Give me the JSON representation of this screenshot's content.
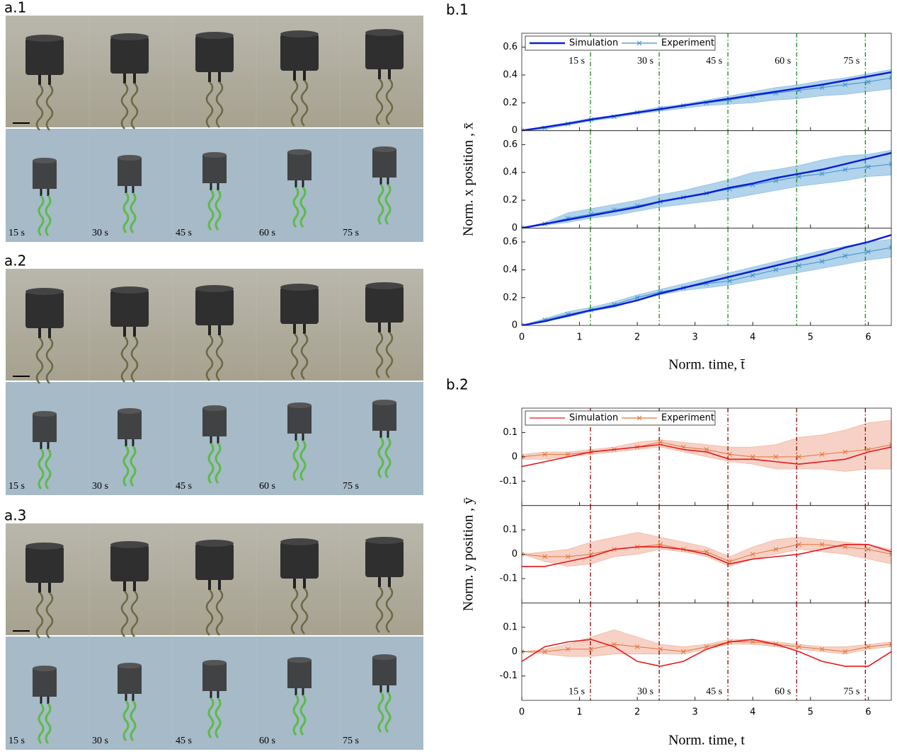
{
  "panels": [
    {
      "label": "a.1",
      "times": [
        "15 s",
        "30 s",
        "45 s",
        "60 s",
        "75 s"
      ]
    },
    {
      "label": "a.2",
      "times": [
        "15 s",
        "30 s",
        "45 s",
        "60 s",
        "75 s"
      ]
    },
    {
      "label": "a.3",
      "times": [
        "15 s",
        "30 s",
        "45 s",
        "60 s",
        "75 s"
      ]
    }
  ],
  "chart_data": [
    {
      "type": "line",
      "label": "b.1",
      "xlabel": "Norm. time, t̄",
      "ylabel": "Norm. x position , x̄",
      "x": [
        0,
        0.4,
        0.8,
        1.2,
        1.6,
        2,
        2.4,
        2.8,
        3.2,
        3.6,
        4,
        4.4,
        4.8,
        5.2,
        5.6,
        6,
        6.4
      ],
      "xlim": [
        0,
        6.4
      ],
      "xticks": [
        0,
        1,
        2,
        3,
        4,
        5,
        6
      ],
      "ylim": [
        0,
        0.7
      ],
      "yticks": [
        0,
        0.2,
        0.4,
        0.6
      ],
      "legend": "upper left",
      "band_color": "#9ec8e6",
      "series": [
        {
          "name": "Simulation",
          "color": "#0a1fd6"
        },
        {
          "name": "Experiment",
          "color": "#3a8fd0"
        }
      ],
      "events": {
        "x": [
          1.19,
          2.38,
          3.57,
          4.76,
          5.95
        ],
        "labels": [
          "15 s",
          "30 s",
          "45 s",
          "60 s",
          "75 s"
        ],
        "color": "#1a8a1a",
        "label_subplot": 0
      },
      "subplots": [
        {
          "simulation": [
            0,
            0.025,
            0.05,
            0.08,
            0.105,
            0.13,
            0.155,
            0.18,
            0.205,
            0.23,
            0.255,
            0.28,
            0.305,
            0.33,
            0.36,
            0.39,
            0.42
          ],
          "experiment": [
            0,
            0.02,
            0.05,
            0.08,
            0.1,
            0.13,
            0.16,
            0.18,
            0.2,
            0.22,
            0.25,
            0.27,
            0.29,
            0.31,
            0.33,
            0.35,
            0.38
          ],
          "lower": [
            0,
            0.01,
            0.04,
            0.07,
            0.09,
            0.12,
            0.14,
            0.16,
            0.18,
            0.19,
            0.2,
            0.22,
            0.23,
            0.25,
            0.26,
            0.28,
            0.3
          ],
          "upper": [
            0,
            0.03,
            0.06,
            0.09,
            0.11,
            0.14,
            0.17,
            0.19,
            0.22,
            0.25,
            0.28,
            0.31,
            0.33,
            0.36,
            0.38,
            0.41,
            0.44
          ]
        },
        {
          "simulation": [
            0,
            0.03,
            0.06,
            0.09,
            0.12,
            0.15,
            0.19,
            0.22,
            0.25,
            0.29,
            0.32,
            0.36,
            0.39,
            0.42,
            0.46,
            0.5,
            0.54
          ],
          "experiment": [
            0,
            0.03,
            0.07,
            0.1,
            0.13,
            0.16,
            0.19,
            0.22,
            0.25,
            0.28,
            0.31,
            0.34,
            0.37,
            0.39,
            0.42,
            0.44,
            0.46
          ],
          "lower": [
            0,
            0.02,
            0.04,
            0.07,
            0.09,
            0.12,
            0.15,
            0.17,
            0.19,
            0.21,
            0.24,
            0.27,
            0.3,
            0.32,
            0.34,
            0.37,
            0.38
          ],
          "upper": [
            0,
            0.04,
            0.11,
            0.14,
            0.17,
            0.2,
            0.24,
            0.27,
            0.31,
            0.35,
            0.4,
            0.42,
            0.45,
            0.49,
            0.52,
            0.53,
            0.56
          ]
        },
        {
          "simulation": [
            0,
            0.03,
            0.07,
            0.11,
            0.14,
            0.18,
            0.23,
            0.27,
            0.31,
            0.35,
            0.39,
            0.43,
            0.47,
            0.51,
            0.56,
            0.6,
            0.65
          ],
          "experiment": [
            0,
            0.04,
            0.08,
            0.11,
            0.15,
            0.2,
            0.24,
            0.27,
            0.3,
            0.32,
            0.36,
            0.4,
            0.43,
            0.46,
            0.5,
            0.53,
            0.56
          ],
          "lower": [
            0,
            0.03,
            0.06,
            0.1,
            0.13,
            0.18,
            0.22,
            0.25,
            0.27,
            0.29,
            0.32,
            0.35,
            0.38,
            0.41,
            0.44,
            0.47,
            0.49
          ],
          "upper": [
            0,
            0.05,
            0.1,
            0.13,
            0.17,
            0.22,
            0.26,
            0.3,
            0.34,
            0.38,
            0.42,
            0.46,
            0.5,
            0.54,
            0.57,
            0.6,
            0.62
          ]
        }
      ]
    },
    {
      "type": "line",
      "label": "b.2",
      "xlabel": "Norm. time, t",
      "ylabel": "Norm. y position , ȳ",
      "x": [
        0,
        0.4,
        0.8,
        1.2,
        1.6,
        2,
        2.4,
        2.8,
        3.2,
        3.6,
        4,
        4.4,
        4.8,
        5.2,
        5.6,
        6,
        6.4
      ],
      "xlim": [
        0,
        6.4
      ],
      "xticks": [
        0,
        1,
        2,
        3,
        4,
        5,
        6
      ],
      "ylim": [
        -0.2,
        0.2
      ],
      "yticks": [
        -0.1,
        0,
        0.1
      ],
      "legend": "upper left",
      "band_color": "#f5c6b8",
      "series": [
        {
          "name": "Simulation",
          "color": "#e8161b"
        },
        {
          "name": "Experiment",
          "color": "#e0763a"
        }
      ],
      "events": {
        "x": [
          1.19,
          2.38,
          3.57,
          4.76,
          5.95
        ],
        "labels": [
          "15 s",
          "30 s",
          "45 s",
          "60 s",
          "75 s"
        ],
        "color": "#8b0000",
        "label_subplot": 2
      },
      "subplots": [
        {
          "simulation": [
            -0.04,
            -0.02,
            0,
            0.02,
            0.03,
            0.04,
            0.05,
            0.03,
            0.02,
            -0.01,
            -0.01,
            -0.02,
            -0.03,
            -0.02,
            -0.01,
            0.02,
            0.04
          ],
          "experiment": [
            0,
            0.01,
            0.01,
            0.02,
            0.03,
            0.04,
            0.06,
            0.04,
            0.03,
            0.01,
            0,
            0,
            0,
            0.01,
            0.02,
            0.03,
            0.05
          ],
          "lower": [
            -0.01,
            -0.01,
            0,
            0.01,
            0.02,
            0.03,
            0.04,
            0.02,
            0,
            -0.02,
            -0.03,
            -0.05,
            -0.05,
            -0.05,
            -0.06,
            -0.05,
            -0.05
          ],
          "upper": [
            0.01,
            0.02,
            0.02,
            0.03,
            0.04,
            0.06,
            0.07,
            0.06,
            0.05,
            0.04,
            0.04,
            0.05,
            0.08,
            0.09,
            0.11,
            0.14,
            0.15
          ]
        },
        {
          "simulation": [
            -0.05,
            -0.05,
            -0.03,
            -0.01,
            0.02,
            0.03,
            0.03,
            0.02,
            0,
            -0.04,
            -0.02,
            -0.01,
            0,
            0.02,
            0.04,
            0.04,
            0.01
          ],
          "experiment": [
            0,
            -0.01,
            -0.01,
            0,
            0.02,
            0.03,
            0.04,
            0.02,
            0.01,
            -0.03,
            0,
            0.02,
            0.04,
            0.04,
            0.03,
            0.02,
            0
          ],
          "lower": [
            0,
            -0.03,
            -0.05,
            -0.04,
            -0.01,
            0,
            0.02,
            0.01,
            -0.01,
            -0.05,
            -0.02,
            0,
            0.02,
            0.01,
            0,
            -0.02,
            -0.04
          ],
          "upper": [
            0,
            0.01,
            0.02,
            0.05,
            0.07,
            0.09,
            0.07,
            0.05,
            0.03,
            -0.01,
            0.03,
            0.06,
            0.07,
            0.06,
            0.05,
            0.04,
            0.02
          ]
        },
        {
          "simulation": [
            -0.04,
            0.02,
            0.04,
            0.05,
            0.02,
            -0.04,
            -0.06,
            -0.04,
            0.01,
            0.04,
            0.05,
            0.03,
            0,
            -0.04,
            -0.06,
            -0.06,
            0
          ],
          "experiment": [
            0,
            0,
            0.01,
            0.01,
            0.03,
            0.02,
            0.01,
            0,
            0.02,
            0.04,
            0.04,
            0.03,
            0.02,
            0.01,
            0,
            0.02,
            0.03
          ],
          "lower": [
            0,
            -0.01,
            -0.02,
            -0.02,
            -0.01,
            -0.01,
            -0.01,
            -0.01,
            0.01,
            0.03,
            0.03,
            0.02,
            0.01,
            0,
            -0.01,
            0.01,
            0.02
          ],
          "upper": [
            0,
            0.01,
            0.03,
            0.06,
            0.09,
            0.06,
            0.03,
            0.02,
            0.03,
            0.05,
            0.05,
            0.04,
            0.03,
            0.02,
            0.02,
            0.03,
            0.04
          ]
        }
      ]
    }
  ]
}
